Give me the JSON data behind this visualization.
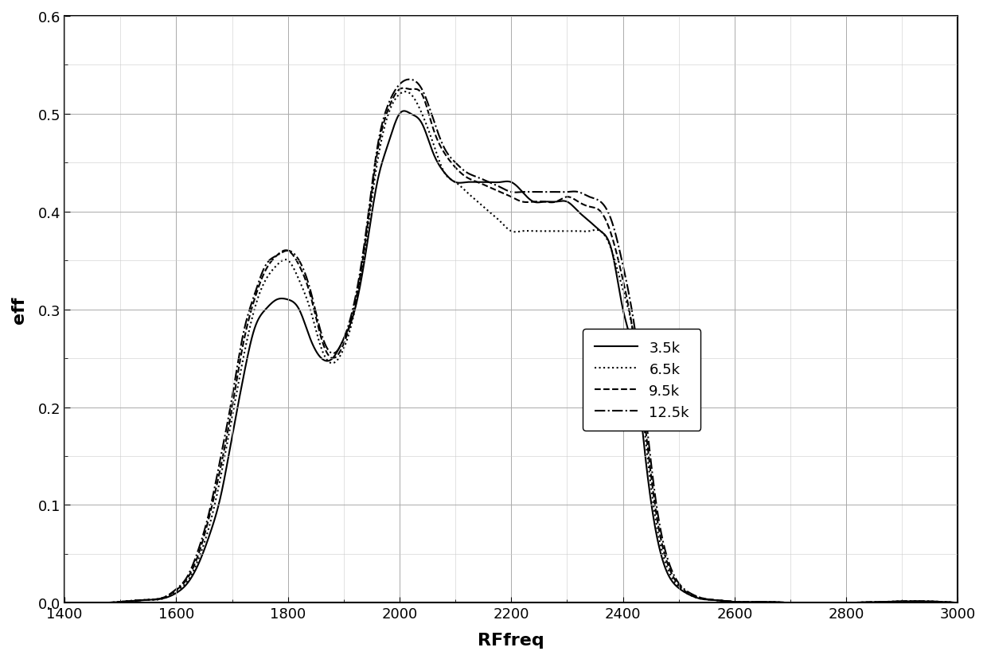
{
  "title": "",
  "xlabel": "RFfreq",
  "ylabel": "eff",
  "xlim": [
    1400,
    3000
  ],
  "ylim": [
    0.0,
    0.6
  ],
  "xticks": [
    1400,
    1600,
    1800,
    2000,
    2200,
    2400,
    2600,
    2800,
    3000
  ],
  "yticks": [
    0.0,
    0.1,
    0.2,
    0.3,
    0.4,
    0.5,
    0.6
  ],
  "legend_labels": [
    "3.5k",
    "6.5k",
    "9.5k",
    "12.5k"
  ],
  "line_styles": [
    "-",
    ":",
    "--",
    "-."
  ],
  "line_color": "#000000",
  "line_width": 1.5,
  "background_color": "#ffffff",
  "curves": {
    "3.5k": {
      "x": [
        1400,
        1500,
        1550,
        1580,
        1600,
        1620,
        1640,
        1660,
        1680,
        1700,
        1720,
        1740,
        1760,
        1780,
        1800,
        1820,
        1840,
        1860,
        1880,
        1900,
        1920,
        1940,
        1960,
        1980,
        2000,
        2020,
        2040,
        2060,
        2080,
        2100,
        2120,
        2140,
        2160,
        2180,
        2200,
        2220,
        2240,
        2260,
        2280,
        2300,
        2320,
        2340,
        2360,
        2380,
        2400,
        2420,
        2440,
        2460,
        2480,
        2500,
        2520,
        2540,
        2560,
        2580,
        2600,
        2650,
        2700,
        2800,
        3000
      ],
      "y": [
        0.0,
        0.001,
        0.003,
        0.005,
        0.01,
        0.02,
        0.04,
        0.07,
        0.11,
        0.17,
        0.23,
        0.28,
        0.3,
        0.31,
        0.31,
        0.3,
        0.27,
        0.25,
        0.25,
        0.27,
        0.3,
        0.36,
        0.43,
        0.47,
        0.5,
        0.5,
        0.49,
        0.46,
        0.44,
        0.43,
        0.43,
        0.43,
        0.43,
        0.43,
        0.43,
        0.42,
        0.41,
        0.41,
        0.41,
        0.41,
        0.4,
        0.39,
        0.38,
        0.36,
        0.3,
        0.25,
        0.15,
        0.07,
        0.03,
        0.015,
        0.008,
        0.004,
        0.003,
        0.002,
        0.001,
        0.001,
        0.0,
        0.0,
        0.0
      ]
    },
    "6.5k": {
      "x": [
        1400,
        1500,
        1550,
        1580,
        1600,
        1620,
        1640,
        1660,
        1680,
        1700,
        1720,
        1740,
        1760,
        1780,
        1800,
        1820,
        1840,
        1860,
        1880,
        1900,
        1920,
        1940,
        1960,
        1980,
        2000,
        2020,
        2040,
        2060,
        2080,
        2100,
        2120,
        2140,
        2160,
        2180,
        2200,
        2220,
        2240,
        2260,
        2280,
        2300,
        2320,
        2340,
        2360,
        2380,
        2400,
        2420,
        2440,
        2460,
        2480,
        2500,
        2520,
        2540,
        2560,
        2580,
        2600,
        2650,
        2700,
        2800,
        3000
      ],
      "y": [
        0.0,
        0.001,
        0.003,
        0.005,
        0.012,
        0.022,
        0.045,
        0.08,
        0.13,
        0.19,
        0.25,
        0.3,
        0.33,
        0.345,
        0.35,
        0.33,
        0.3,
        0.26,
        0.245,
        0.26,
        0.3,
        0.37,
        0.45,
        0.5,
        0.52,
        0.52,
        0.5,
        0.47,
        0.44,
        0.43,
        0.42,
        0.41,
        0.4,
        0.39,
        0.38,
        0.38,
        0.38,
        0.38,
        0.38,
        0.38,
        0.38,
        0.38,
        0.38,
        0.36,
        0.32,
        0.27,
        0.17,
        0.08,
        0.035,
        0.016,
        0.008,
        0.004,
        0.003,
        0.002,
        0.001,
        0.001,
        0.0,
        0.0,
        0.0
      ]
    },
    "9.5k": {
      "x": [
        1400,
        1500,
        1550,
        1580,
        1600,
        1620,
        1640,
        1660,
        1680,
        1700,
        1720,
        1740,
        1760,
        1780,
        1800,
        1820,
        1840,
        1860,
        1880,
        1900,
        1920,
        1940,
        1960,
        1980,
        2000,
        2020,
        2040,
        2060,
        2080,
        2100,
        2120,
        2140,
        2160,
        2180,
        2200,
        2220,
        2240,
        2260,
        2280,
        2300,
        2320,
        2340,
        2360,
        2380,
        2400,
        2420,
        2440,
        2460,
        2480,
        2500,
        2520,
        2540,
        2560,
        2580,
        2600,
        2650,
        2700,
        2800,
        3000
      ],
      "y": [
        0.0,
        0.001,
        0.003,
        0.006,
        0.013,
        0.025,
        0.05,
        0.09,
        0.14,
        0.2,
        0.265,
        0.31,
        0.34,
        0.355,
        0.36,
        0.345,
        0.315,
        0.27,
        0.25,
        0.265,
        0.305,
        0.375,
        0.46,
        0.505,
        0.525,
        0.525,
        0.52,
        0.485,
        0.46,
        0.445,
        0.435,
        0.43,
        0.425,
        0.42,
        0.415,
        0.41,
        0.41,
        0.41,
        0.41,
        0.415,
        0.41,
        0.405,
        0.4,
        0.375,
        0.33,
        0.27,
        0.18,
        0.09,
        0.04,
        0.018,
        0.009,
        0.005,
        0.003,
        0.002,
        0.001,
        0.001,
        0.0,
        0.0,
        0.0
      ]
    },
    "12.5k": {
      "x": [
        1400,
        1500,
        1550,
        1580,
        1600,
        1620,
        1640,
        1660,
        1680,
        1700,
        1720,
        1740,
        1760,
        1780,
        1800,
        1820,
        1840,
        1860,
        1880,
        1900,
        1920,
        1940,
        1960,
        1980,
        2000,
        2020,
        2040,
        2060,
        2080,
        2100,
        2120,
        2140,
        2160,
        2180,
        2200,
        2220,
        2240,
        2260,
        2280,
        2300,
        2320,
        2340,
        2360,
        2380,
        2400,
        2420,
        2440,
        2460,
        2480,
        2500,
        2520,
        2540,
        2560,
        2580,
        2600,
        2650,
        2700,
        2800,
        3000
      ],
      "y": [
        0.0,
        0.001,
        0.003,
        0.006,
        0.014,
        0.027,
        0.055,
        0.095,
        0.15,
        0.21,
        0.275,
        0.315,
        0.345,
        0.355,
        0.36,
        0.35,
        0.32,
        0.275,
        0.255,
        0.27,
        0.31,
        0.38,
        0.465,
        0.51,
        0.53,
        0.535,
        0.525,
        0.495,
        0.465,
        0.45,
        0.44,
        0.435,
        0.43,
        0.425,
        0.42,
        0.42,
        0.42,
        0.42,
        0.42,
        0.42,
        0.42,
        0.415,
        0.41,
        0.39,
        0.345,
        0.285,
        0.195,
        0.1,
        0.045,
        0.02,
        0.01,
        0.005,
        0.003,
        0.002,
        0.001,
        0.001,
        0.0,
        0.0,
        0.0
      ]
    }
  }
}
